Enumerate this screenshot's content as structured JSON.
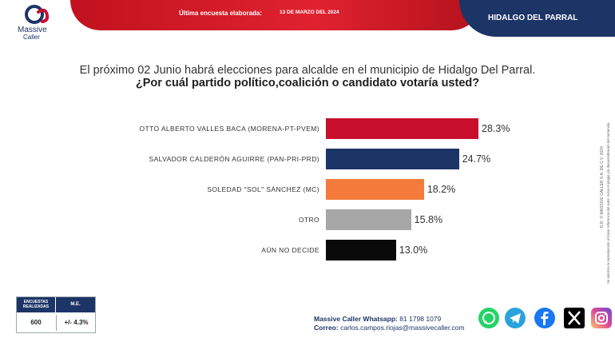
{
  "brand": {
    "line1": "Massive",
    "line2": "Caller"
  },
  "header": {
    "survey_label": "Última encuesta elaborada:",
    "survey_date": "13 DE MARZO DEL 2024",
    "region": "HIDALGO DEL PARRAL"
  },
  "question": {
    "line1": "El próximo 02 Junio habrá elecciones para alcalde en el municipio de Hidalgo Del Parral.",
    "line2": "¿Por cuál partido político,coalición o candidato votaría usted?"
  },
  "chart_data": {
    "type": "bar",
    "orientation": "horizontal",
    "categories": [
      "OTTO ALBERTO VALLES BACA (MORENA-PT-PVEM)",
      "SALVADOR CALDERÓN AGUIRRE (PAN-PRI-PRD)",
      "SOLEDAD \"SOL\" SÁNCHEZ (MC)",
      "OTRO",
      "AÚN NO DECIDE"
    ],
    "values": [
      28.3,
      24.7,
      18.2,
      15.8,
      13.0
    ],
    "labels": [
      "28.3%",
      "24.7%",
      "18.2%",
      "15.8%",
      "13.0%"
    ],
    "colors": [
      "#c8102e",
      "#1d3466",
      "#f47b3b",
      "#a6a6a6",
      "#0a0a0a"
    ],
    "unit": "%"
  },
  "table": {
    "col1_header": "ENCUESTAS REALIZADAS",
    "col2_header": "M.E.",
    "col1_value": "600",
    "col2_value": "+/- 4.3%"
  },
  "contact": {
    "whatsapp_label": "Massive Caller Whatsapp:",
    "whatsapp_number": "81 1798 1079",
    "email_label": "Correo:",
    "email": "carlos.campos.riojas@massivecaller.com"
  },
  "side_text": {
    "rights": "D.R. © MASSIVE CALLER S.A. DE C.V. 2024",
    "notice": "Se autoriza la reproducción al hacer referencia del autor, salvo el plagio y/o desacreditación del contenido."
  },
  "social_icons": [
    "whatsapp-icon",
    "telegram-icon",
    "facebook-icon",
    "x-icon",
    "instagram-icon"
  ]
}
